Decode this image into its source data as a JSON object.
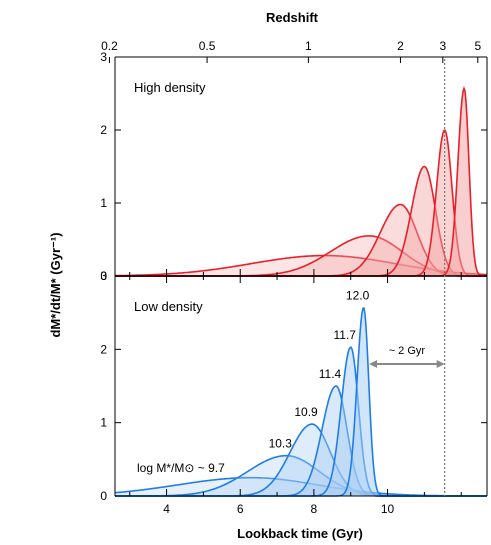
{
  "chart_data": {
    "type": "area",
    "title": "",
    "top_axis": {
      "label": "Redshift",
      "ticks": [
        {
          "z": 0.2,
          "label": "0.2",
          "time": 2.45
        },
        {
          "z": 0.5,
          "label": "0.5",
          "time": 5.1
        },
        {
          "z": 1,
          "label": "1",
          "time": 7.85
        },
        {
          "z": 2,
          "label": "2",
          "time": 10.35
        },
        {
          "z": 3,
          "label": "3",
          "time": 11.5
        },
        {
          "z": 5,
          "label": "5",
          "time": 12.45
        }
      ]
    },
    "xlabel": "Lookback time (Gyr)",
    "ylabel": "dM*/dt/M* (Gyr⁻¹)",
    "xlim": [
      2.6,
      12.7
    ],
    "x_ticks": [
      4,
      6,
      8,
      10
    ],
    "panels": [
      {
        "name": "High density",
        "ylim": [
          0,
          3
        ],
        "y_ticks": [
          0,
          1,
          2,
          3
        ],
        "color": "#e8202a",
        "fill": "#f4a3a3",
        "series": [
          {
            "center": 8.3,
            "amplitude": 0.28,
            "sigma_left": 2.0,
            "sigma_right": 1.9
          },
          {
            "center": 9.5,
            "amplitude": 0.55,
            "sigma_left": 1.05,
            "sigma_right": 0.9
          },
          {
            "center": 10.35,
            "amplitude": 0.98,
            "sigma_left": 0.55,
            "sigma_right": 0.45
          },
          {
            "center": 11.0,
            "amplitude": 1.5,
            "sigma_left": 0.35,
            "sigma_right": 0.3
          },
          {
            "center": 11.55,
            "amplitude": 2.0,
            "sigma_left": 0.22,
            "sigma_right": 0.2
          },
          {
            "center": 12.08,
            "amplitude": 2.57,
            "sigma_left": 0.17,
            "sigma_right": 0.13
          }
        ]
      },
      {
        "name": "Low density",
        "ylim": [
          0,
          3
        ],
        "y_ticks": [
          0,
          1,
          2,
          3
        ],
        "color": "#1f7de8",
        "fill": "#a8cdf4",
        "series": [
          {
            "mass_label": "log M*/M⊙ ~ 9.7",
            "center": 6.3,
            "amplitude": 0.25,
            "sigma_left": 2.0,
            "sigma_right": 1.8
          },
          {
            "mass_label": "10.3",
            "center": 7.25,
            "amplitude": 0.55,
            "sigma_left": 1.05,
            "sigma_right": 0.9
          },
          {
            "mass_label": "10.9",
            "center": 7.95,
            "amplitude": 0.98,
            "sigma_left": 0.6,
            "sigma_right": 0.5
          },
          {
            "mass_label": "11.4",
            "center": 8.6,
            "amplitude": 1.5,
            "sigma_left": 0.38,
            "sigma_right": 0.3
          },
          {
            "mass_label": "11.7",
            "center": 9.0,
            "amplitude": 2.03,
            "sigma_left": 0.26,
            "sigma_right": 0.21
          },
          {
            "mass_label": "12.0",
            "center": 9.35,
            "amplitude": 2.57,
            "sigma_left": 0.18,
            "sigma_right": 0.14
          }
        ]
      }
    ],
    "annotation": {
      "text": "~ 2 Gyr",
      "from": 9.5,
      "to": 11.55,
      "y": 1.8
    },
    "reference_line": {
      "x": 11.55,
      "style": "dotted"
    }
  }
}
